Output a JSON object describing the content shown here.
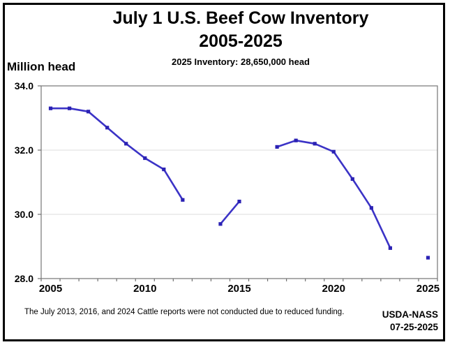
{
  "title": {
    "line1": "July 1 U.S. Beef Cow Inventory",
    "line2": "2005-2025"
  },
  "subtitle": "2025 Inventory: 28,650,000 head",
  "y_axis_title": "Million head",
  "footnote": "The July 2013, 2016, and 2024 Cattle reports were not conducted due to reduced funding.",
  "source": {
    "org": "USDA-NASS",
    "date": "07-25-2025"
  },
  "colors": {
    "line": "#3b33c6",
    "marker": "#2b22b4",
    "gridline": "#dcdcdc",
    "plot_border": "#808080",
    "tick": "#707070",
    "frame_border": "#000000"
  },
  "chart_data": {
    "type": "line",
    "title": "July 1 U.S. Beef Cow Inventory 2005-2025",
    "subtitle": "2025 Inventory: 28,650,000 head",
    "ylabel": "Million head",
    "xlabel": "",
    "x": [
      2005,
      2006,
      2007,
      2008,
      2009,
      2010,
      2011,
      2012,
      2013,
      2014,
      2015,
      2016,
      2017,
      2018,
      2019,
      2020,
      2021,
      2022,
      2023,
      2024,
      2025
    ],
    "series": [
      {
        "name": "July 1 U.S. beef cow inventory (million head)",
        "values": [
          33.3,
          33.3,
          33.2,
          32.7,
          32.2,
          31.75,
          31.4,
          30.45,
          null,
          29.7,
          30.4,
          null,
          32.1,
          32.3,
          32.2,
          31.95,
          31.1,
          30.2,
          28.95,
          null,
          28.65
        ]
      }
    ],
    "missing_years": [
      2013,
      2016,
      2024
    ],
    "ylim": [
      28.0,
      34.0
    ],
    "y_ticks": [
      {
        "label": "34.0",
        "value": 34.0
      },
      {
        "label": "32.0",
        "value": 32.0
      },
      {
        "label": "30.0",
        "value": 30.0
      },
      {
        "label": "28.0",
        "value": 28.0
      }
    ],
    "x_labeled_ticks": [
      {
        "label": "2005",
        "year": 2005
      },
      {
        "label": "2010",
        "year": 2010
      },
      {
        "label": "2015",
        "year": 2015
      },
      {
        "label": "2020",
        "year": 2020
      },
      {
        "label": "2025",
        "year": 2025
      }
    ],
    "grid": "horizontal-major",
    "legend": "none",
    "marker": "square"
  }
}
